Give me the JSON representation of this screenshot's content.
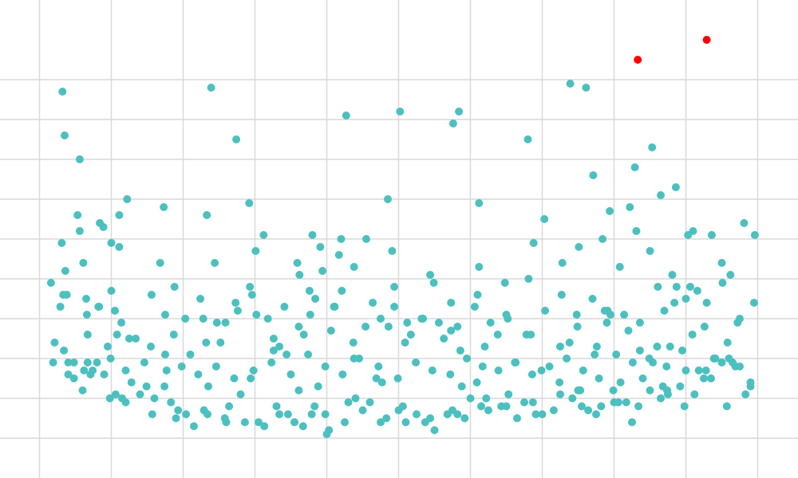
{
  "chart_data": {
    "type": "scatter",
    "title": "",
    "xlabel": "",
    "ylabel": "",
    "grid": true,
    "legend": "none",
    "xlim": [
      0,
      100
    ],
    "ylim": [
      0,
      11
    ],
    "xticks": [
      0,
      10,
      20,
      30,
      40,
      50,
      60,
      70,
      80,
      90,
      100
    ],
    "yticks": [
      1,
      2,
      3,
      4,
      5,
      6,
      7,
      8,
      9,
      10
    ],
    "colors": {
      "points": "#4dbfbf",
      "highlight": "#ff0000",
      "grid": "#d9d9d9",
      "background": "#ffffff"
    },
    "series": [
      {
        "x": [
          3.1,
          5.3,
          6.1,
          8.4,
          10.0,
          11.1,
          12.2,
          5.6,
          8.9,
          16.8,
          17.3,
          23.3,
          30.1,
          31.2,
          35.9,
          36.2,
          38.0,
          39.1,
          39.4,
          41.7,
          42.0,
          42.1,
          43.8,
          45.5,
          49.1,
          54.4,
          57.3,
          61.2,
          64.8,
          68.1,
          70.3,
          72.8,
          75.1,
          78.4,
          78.7,
          80.8,
          83.1,
          85.0,
          87.0,
          88.1,
          90.3,
          90.9,
          93.6,
          95.0,
          96.2,
          98.1,
          99.6,
          3.3,
          6.7,
          8.2,
          15.5,
          18.7,
          21.0,
          22.8,
          25.2,
          24.4,
          25.9,
          30.2,
          32.6,
          34.4,
          37.7,
          40.6,
          45.4,
          49.4,
          51.2,
          53.4,
          56.3,
          58.6,
          61.0,
          62.0,
          65.0,
          68.4,
          72.5,
          74.9,
          77.3,
          79.1,
          82.0,
          85.4,
          87.8,
          90.0,
          93.9,
          95.8,
          97.2,
          99.5,
          4.0,
          6.7,
          9.0,
          10.6,
          12.0,
          14.9,
          17.7,
          19.3,
          23.4,
          26.4,
          29.4,
          33.4,
          36.1,
          38.3,
          40.3,
          44.0,
          47.7,
          50.6,
          54.4,
          58.2,
          62.2,
          65.3,
          68.7,
          72.4,
          75.5,
          79.9,
          81.7,
          84.0,
          86.8,
          89.8,
          92.8,
          95.7,
          98.3,
          99.0
        ],
        "y": [
          5.9,
          6.6,
          5.4,
          6.4,
          5.9,
          6.6,
          7.0,
          6.2,
          6.3,
          5.4,
          6.8,
          6.6,
          5.7,
          6.1,
          5.4,
          5.1,
          6.1,
          5.8,
          5.2,
          5.6,
          6.0,
          4.7,
          5.3,
          6.0,
          5.7,
          5.1,
          4.4,
          5.3,
          4.9,
          5.0,
          6.5,
          5.4,
          5.8,
          6.0,
          4.2,
          5.3,
          6.2,
          5.7,
          4.2,
          5.1,
          6.1,
          3.6,
          6.1,
          5.4,
          5.1,
          6.4,
          6.1,
          4.6,
          3.6,
          4.3,
          3.3,
          3.6,
          3.1,
          4.0,
          3.4,
          5.4,
          3.9,
          4.1,
          3.5,
          3.1,
          4.1,
          3.7,
          3.8,
          4.3,
          3.9,
          4.0,
          3.5,
          3.2,
          4.6,
          3.3,
          4.1,
          3.6,
          3.3,
          3.8,
          3.1,
          4.2,
          3.7,
          2.9,
          3.3,
          4.5,
          3.0,
          3.4,
          3.9,
          4.4,
          2.9,
          2.9,
          2.6,
          2.1,
          1.9,
          2.3,
          2.7,
          1.7,
          1.6,
          1.8,
          2.5,
          1.6,
          2.2,
          1.8,
          1.2,
          2.0,
          2.4,
          1.8,
          1.5,
          1.6,
          2.0,
          2.1,
          1.9,
          2.4,
          1.8,
          2.2,
          1.9,
          2.5,
          2.3,
          1.8,
          2.7,
          1.8,
          2.1,
          2.4
        ]
      },
      {
        "x": [
          2.1,
          2.9,
          3.6,
          6.2,
          10.0,
          11.1,
          12.5,
          6.5,
          10.5,
          11.4,
          17.5,
          18.8,
          23.2,
          27.3,
          29.3,
          32.3,
          33.4,
          36.8,
          37.6,
          38.8,
          41.0,
          43.8,
          46.9,
          47.5,
          49.4,
          51.7,
          54.9,
          57.3,
          58.8,
          60.9,
          63.8,
          66.3,
          69.9,
          73.8,
          75.3,
          77.6,
          79.5,
          80.9,
          83.6,
          86.0,
          87.4,
          88.7,
          91.6,
          92.6,
          96.0
        ],
        "y": [
          3.4,
          4.3,
          5.2,
          2.7,
          4.7,
          5.8,
          3.5,
          4.5,
          4.2,
          3.9,
          3.1,
          4.8,
          3.4,
          4.4,
          4.8,
          2.9,
          3.3,
          3.6,
          4.7,
          2.3,
          4.3,
          3.0,
          2.5,
          4.0,
          4.8,
          3.6,
          4.9,
          3.7,
          2.3,
          2.4,
          3.6,
          2.9,
          2.7,
          3.4,
          2.2,
          3.3,
          4.1,
          2.4,
          3.2,
          3.3,
          2.2,
          4.8,
          4.7,
          3.8,
          3.0
        ]
      },
      {
        "x": [
          3.4,
          4.0,
          6.0,
          8.0,
          9.5,
          11.5,
          14.0,
          16.0,
          19.0,
          21.5,
          23.5,
          26.0,
          28.0,
          30.5,
          33.0,
          35.5,
          37.9,
          40.0,
          43.0,
          45.0,
          47.5,
          50.0,
          52.5,
          55.0,
          57.5,
          60.0,
          62.5,
          65.0,
          67.5,
          70.0,
          72.5,
          75.0,
          77.5,
          80.0,
          82.5,
          85.0,
          87.5,
          90.0,
          92.5,
          95.0,
          97.5,
          99.0,
          4.8,
          7.4,
          9.8,
          12.8,
          15.7,
          18.3,
          20.4,
          22.9,
          25.8,
          28.6,
          31.3,
          34.6,
          36.7,
          39.8,
          42.5,
          46.0,
          48.3,
          51.0,
          53.7,
          56.8,
          59.2,
          61.5,
          64.3,
          66.5,
          69.1,
          71.6,
          74.2,
          76.4,
          78.2,
          80.6,
          83.4,
          86.5,
          89.2,
          91.2,
          93.5,
          96.9
        ],
        "y": [
          3.2,
          2.6,
          2.2,
          2.9,
          3.3,
          2.0,
          2.1,
          2.0,
          1.5,
          1.3,
          2.3,
          1.4,
          2.1,
          1.4,
          1.8,
          1.4,
          1.6,
          1.1,
          1.9,
          1.7,
          1.4,
          1.7,
          1.6,
          1.2,
          1.7,
          2.0,
          1.7,
          1.8,
          1.9,
          1.6,
          2.1,
          2.2,
          1.6,
          1.9,
          1.4,
          2.2,
          2.1,
          2.7,
          2.5,
          2.9,
          2.8,
          2.3,
          2.9,
          2.7,
          2.0,
          2.4,
          1.6,
          1.9,
          1.6,
          1.7,
          1.5,
          1.4,
          1.3,
          1.6,
          1.3,
          1.6,
          1.4,
          1.9,
          1.5,
          1.4,
          1.4,
          1.6,
          1.5,
          1.8,
          1.8,
          1.5,
          1.6,
          1.7,
          2.0,
          1.7,
          1.8,
          1.9,
          1.8,
          2.0,
          2.3,
          2.1,
          2.5,
          2.8
        ]
      },
      {
        "x": [
          1.6,
          3.8,
          6.6,
          8.3,
          10.8,
          13.4,
          15.6,
          17.5,
          20.3,
          22.4,
          24.7,
          27.6,
          29.6,
          31.8,
          34.1,
          36.1,
          38.4,
          41.1,
          43.7,
          46.4,
          48.6,
          50.9,
          53.2,
          55.6,
          58.2,
          60.6,
          62.8,
          65.2,
          67.8,
          70.4,
          72.7,
          74.8,
          77.0,
          79.0,
          81.4,
          83.6,
          86.1,
          88.4,
          90.6,
          92.9,
          95.1,
          97.5,
          1.9,
          4.8,
          7.1,
          9.9,
          12.0,
          14.6,
          17.4,
          19.8,
          22.1,
          24.6,
          27.1,
          29.8,
          32.6,
          35.0,
          37.4,
          39.8,
          42.2,
          44.5,
          47.2,
          49.9,
          52.4,
          54.7,
          57.2,
          59.5,
          61.7,
          63.9,
          66.2,
          68.6,
          71.0,
          73.4,
          75.7,
          77.9,
          80.3,
          82.6,
          84.9,
          87.3,
          89.5,
          91.8,
          94.1,
          96.5
        ],
        "y": [
          4.9,
          4.6,
          4.1,
          4.3,
          3.6,
          3.5,
          4.6,
          4.1,
          4.0,
          4.5,
          3.9,
          4.2,
          4.6,
          4.0,
          4.3,
          3.8,
          4.5,
          4.3,
          3.4,
          4.4,
          3.8,
          3.4,
          4.0,
          3.9,
          3.8,
          4.3,
          3.9,
          4.0,
          3.6,
          4.2,
          4.6,
          4.1,
          4.5,
          3.9,
          4.1,
          3.9,
          4.8,
          4.4,
          4.8,
          4.4,
          4.9,
          4.0,
          2.9,
          2.5,
          2.6,
          3.0,
          2.7,
          2.9,
          2.3,
          2.8,
          2.6,
          2.8,
          2.5,
          2.7,
          3.2,
          2.6,
          3.1,
          2.8,
          2.6,
          3.0,
          2.8,
          2.5,
          2.9,
          2.7,
          2.6,
          3.0,
          2.8,
          2.7,
          2.9,
          2.6,
          2.8,
          3.0,
          2.7,
          2.5,
          3.1,
          2.9,
          3.0,
          2.8,
          3.2,
          2.7,
          3.0,
          2.9
        ]
      },
      {
        "x": [
          3.2,
          3.5,
          5.6,
          23.9,
          27.4,
          29.2,
          42.7,
          48.5,
          50.2,
          57.6,
          58.4,
          61.2,
          68.0,
          68.8,
          73.9,
          76.1,
          77.1,
          79.4,
          82.2,
          82.9,
          85.3,
          86.5,
          88.6,
          91.0
        ],
        "y": [
          9.7,
          8.6,
          8.0,
          9.8,
          8.5,
          6.9,
          9.1,
          7.0,
          9.2,
          8.9,
          9.2,
          6.9,
          8.5,
          5.9,
          9.9,
          9.8,
          7.6,
          6.7,
          6.8,
          7.8,
          8.3,
          7.1,
          7.3,
          6.2
        ]
      }
    ],
    "highlight_points": {
      "x": [
        83.3,
        92.9
      ],
      "y": [
        10.5,
        11.0
      ]
    }
  }
}
